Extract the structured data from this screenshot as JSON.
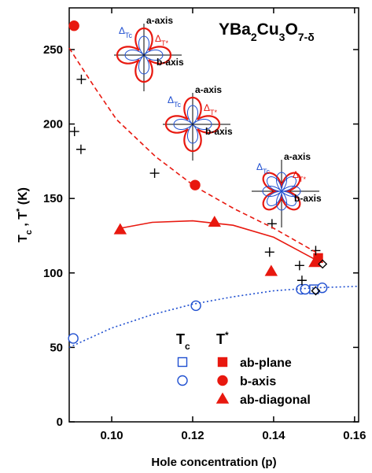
{
  "chart_data": {
    "type": "scatter",
    "title": "YBa2Cu3O7-δ",
    "xlabel": "Hole concentration (p)",
    "ylabel": "Tc , T* (K)",
    "xlim": [
      0.0895,
      0.161
    ],
    "ylim": [
      0,
      278
    ],
    "xticks": [
      {
        "value": 0.1,
        "label": "0.10"
      },
      0.12,
      0.14,
      0.16
    ],
    "yticks": [
      0,
      50,
      100,
      150,
      200,
      250
    ],
    "legend_columns": [
      "Tc",
      "T*"
    ],
    "series": [
      {
        "quantity": "T*",
        "name": "ab-plane",
        "marker": "square",
        "filled": true,
        "color": "#e8180f",
        "x": [
          0.151
        ],
        "values": [
          110
        ]
      },
      {
        "quantity": "T*",
        "name": "b-axis",
        "marker": "circle",
        "filled": true,
        "color": "#e8180f",
        "x": [
          0.0907,
          0.1206
        ],
        "values": [
          266,
          159
        ]
      },
      {
        "quantity": "T*",
        "name": "ab-diagonal",
        "marker": "triangle",
        "filled": true,
        "color": "#e8180f",
        "x": [
          0.1021,
          0.1254,
          0.1394,
          0.1502
        ],
        "values": [
          129,
          134,
          101,
          107
        ]
      },
      {
        "quantity": "Tc",
        "name": "ab-plane",
        "marker": "square",
        "filled": false,
        "color": "#1f4fd0",
        "x": [
          0.15
        ],
        "values": [
          89
        ]
      },
      {
        "quantity": "Tc",
        "name": "b-axis",
        "marker": "circle",
        "filled": false,
        "color": "#1f4fd0",
        "x": [
          0.0905,
          0.1208,
          0.1468,
          0.1478,
          0.152
        ],
        "values": [
          56,
          78,
          89,
          89,
          90
        ]
      },
      {
        "marker": "cross",
        "filled": false,
        "color": "#000000",
        "x": [
          0.0925,
          0.0908,
          0.0924,
          0.1106,
          0.1396,
          0.139,
          0.1464,
          0.147,
          0.1504
        ],
        "values": [
          230,
          195,
          183,
          167,
          133,
          114,
          105,
          95,
          115
        ]
      },
      {
        "marker": "diamond",
        "filled": false,
        "color": "#000000",
        "x": [
          0.1521,
          0.1504
        ],
        "values": [
          106,
          88
        ]
      },
      {
        "marker": "line",
        "dash": "dashed",
        "color": "#e8180f",
        "x": [
          0.0895,
          0.0957,
          0.1012,
          0.1109,
          0.1206,
          0.1303,
          0.14,
          0.1504
        ],
        "values": [
          251,
          225,
          203,
          178,
          158,
          143,
          130,
          114
        ]
      },
      {
        "marker": "line",
        "dash": "solid",
        "color": "#e8180f",
        "x": [
          0.1021,
          0.11,
          0.12,
          0.13,
          0.14,
          0.151
        ],
        "values": [
          130,
          134,
          135,
          132,
          124,
          108
        ]
      },
      {
        "marker": "line",
        "dash": "dotted",
        "color": "#1f4fd0",
        "x": [
          0.0895,
          0.1,
          0.11,
          0.12,
          0.13,
          0.14,
          0.15,
          0.161
        ],
        "values": [
          50,
          63,
          72,
          79,
          84,
          88,
          90,
          91
        ]
      }
    ],
    "insets": [
      {
        "a_axis": "a-axis",
        "b_axis": "b-axis",
        "delta_tc": "ΔTc",
        "delta_tstar": "ΔT*"
      },
      {
        "a_axis": "a-axis",
        "b_axis": "b-axis",
        "delta_tc": "ΔTc",
        "delta_tstar": "ΔT*"
      },
      {
        "a_axis": "a-axis",
        "b_axis": "b-axis",
        "delta_tc": "ΔTc",
        "delta_tstar": "ΔT*"
      }
    ]
  }
}
